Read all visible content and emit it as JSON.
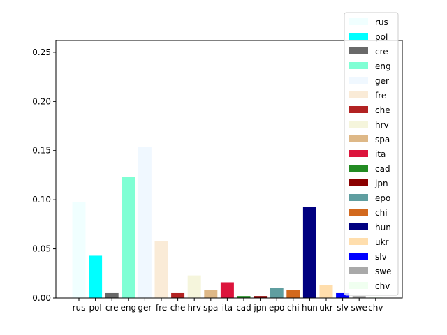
{
  "chart_data": {
    "type": "bar",
    "categories": [
      "rus",
      "pol",
      "cre",
      "eng",
      "ger",
      "fre",
      "che",
      "hrv",
      "spa",
      "ita",
      "cad",
      "jpn",
      "epo",
      "chi",
      "hun",
      "ukr",
      "slv",
      "swe",
      "chv"
    ],
    "values": [
      0.098,
      0.043,
      0.005,
      0.123,
      0.154,
      0.058,
      0.005,
      0.023,
      0.008,
      0.016,
      0.002,
      0.002,
      0.01,
      0.008,
      0.093,
      0.013,
      0.005,
      0.002,
      0.001
    ],
    "colors": [
      "#f0ffff",
      "#00ffff",
      "#696969",
      "#7fffd4",
      "#f0f8ff",
      "#faebd7",
      "#b22222",
      "#f5f5dc",
      "#deb887",
      "#dc143c",
      "#228b22",
      "#8b0000",
      "#5f9ea0",
      "#d2691e",
      "#000080",
      "#ffdead",
      "#0000ff",
      "#a9a9a9",
      "#f0fff0"
    ],
    "ylim": [
      0,
      0.262
    ],
    "yticks": [
      0.0,
      0.05,
      0.1,
      0.15,
      0.2,
      0.25
    ],
    "ytick_labels": [
      "0.00",
      "0.05",
      "0.10",
      "0.15",
      "0.20",
      "0.25"
    ],
    "legend_position": "upper-right",
    "title": "",
    "xlabel": "",
    "ylabel": ""
  }
}
